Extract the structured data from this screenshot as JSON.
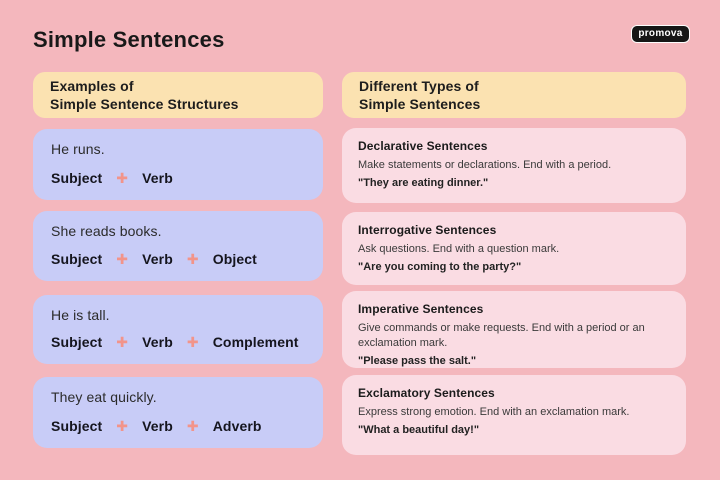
{
  "page": {
    "title": "Simple Sentences",
    "brand": "promova"
  },
  "colors": {
    "background": "#F4B7BD",
    "header_box": "#FBE2B1",
    "example_card": "#C8CCF7",
    "type_card": "#FADCE3",
    "plus_icon": "#F2948A",
    "badge_bg": "#161616",
    "badge_text": "#FFFFFF",
    "text_dark": "#191919"
  },
  "icons": {
    "plus": "✚"
  },
  "left_column": {
    "header_line1": "Examples of",
    "header_line2": "Simple Sentence Structures",
    "items": [
      {
        "sentence": "He runs.",
        "parts": [
          "Subject",
          "Verb"
        ]
      },
      {
        "sentence": "She reads books.",
        "parts": [
          "Subject",
          "Verb",
          "Object"
        ]
      },
      {
        "sentence": "He is tall.",
        "parts": [
          "Subject",
          "Verb",
          "Complement"
        ]
      },
      {
        "sentence": "They eat quickly.",
        "parts": [
          "Subject",
          "Verb",
          "Adverb"
        ]
      }
    ]
  },
  "right_column": {
    "header_line1": "Different Types of",
    "header_line2": "Simple Sentences",
    "items": [
      {
        "title": "Declarative Sentences",
        "description": "Make statements or declarations. End with a period.",
        "example": "\"They are eating dinner.\""
      },
      {
        "title": "Interrogative Sentences",
        "description": "Ask questions. End with a question mark.",
        "example": "\"Are you coming to the party?\""
      },
      {
        "title": "Imperative Sentences",
        "description": "Give commands or make requests. End with a period or an exclamation mark.",
        "example": "\"Please pass the salt.\""
      },
      {
        "title": "Exclamatory Sentences",
        "description": "Express strong emotion. End with an exclamation mark.",
        "example": "\"What a beautiful day!\""
      }
    ]
  }
}
